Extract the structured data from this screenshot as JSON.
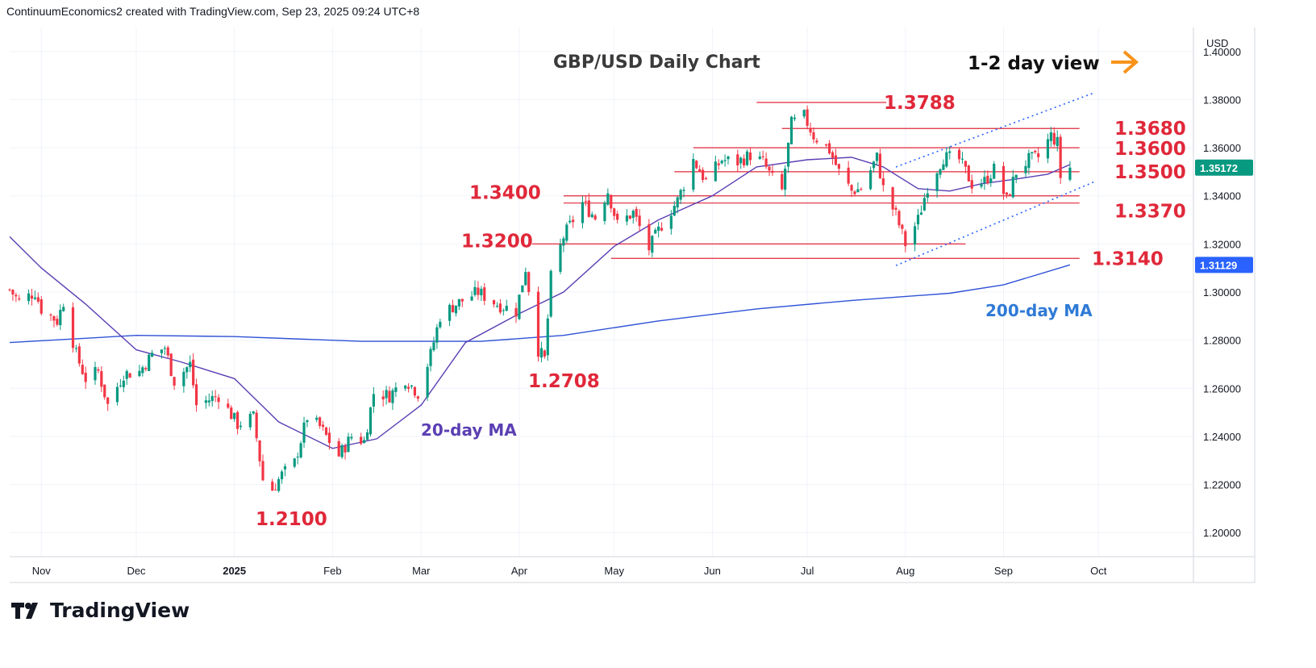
{
  "header": {
    "attribution": "ContinuumEconomics2 created with TradingView.com, Sep 23, 2025 09:24 UTC+8"
  },
  "brand": {
    "name": "TradingView"
  },
  "chart_data": {
    "type": "candlestick",
    "title": "GBP/USD Daily Chart",
    "view_note": "1-2 day view",
    "currency": "USD",
    "ylim": [
      1.19,
      1.41
    ],
    "y_ticks": [
      "1.40000",
      "1.38000",
      "1.36000",
      "1.34000",
      "1.32000",
      "1.30000",
      "1.28000",
      "1.26000",
      "1.24000",
      "1.22000",
      "1.20000"
    ],
    "x_ticks": [
      {
        "label": "Nov",
        "date": "2024-11-01"
      },
      {
        "label": "Dec",
        "date": "2024-12-01"
      },
      {
        "label": "2025",
        "date": "2025-01-01",
        "bold": true
      },
      {
        "label": "Feb",
        "date": "2025-02-01"
      },
      {
        "label": "Mar",
        "date": "2025-03-01"
      },
      {
        "label": "Apr",
        "date": "2025-04-01"
      },
      {
        "label": "May",
        "date": "2025-05-01"
      },
      {
        "label": "Jun",
        "date": "2025-06-01"
      },
      {
        "label": "Jul",
        "date": "2025-07-01"
      },
      {
        "label": "Aug",
        "date": "2025-08-01"
      },
      {
        "label": "Sep",
        "date": "2025-09-01"
      },
      {
        "label": "Oct",
        "date": "2025-10-01"
      }
    ],
    "last_price": "1.35172",
    "ma200_value": "1.31129",
    "levels": [
      {
        "label": "1.3788",
        "value": 1.3788,
        "from": "2025-06-15",
        "to": "2025-07-26"
      },
      {
        "label": "1.3680",
        "value": 1.368,
        "from": "2025-06-23",
        "to": "2025-09-25"
      },
      {
        "label": "1.3600",
        "value": 1.36,
        "from": "2025-05-26",
        "to": "2025-09-25"
      },
      {
        "label": "1.3500",
        "value": 1.35,
        "from": "2025-05-20",
        "to": "2025-09-25"
      },
      {
        "label": "1.3400",
        "value": 1.34,
        "from": "2025-04-15",
        "to": "2025-09-25"
      },
      {
        "label": "1.3370",
        "value": 1.337,
        "from": "2025-04-15",
        "to": "2025-09-25"
      },
      {
        "label": "1.3200",
        "value": 1.32,
        "from": "2025-04-05",
        "to": "2025-08-20"
      },
      {
        "label": "1.3140",
        "value": 1.314,
        "from": "2025-04-30",
        "to": "2025-09-25"
      }
    ],
    "annotations": [
      {
        "label": "1.2708",
        "date": "2025-04-09",
        "value": 1.2708
      },
      {
        "label": "1.2100",
        "date": "2025-01-13",
        "value": 1.21
      },
      {
        "label": "20-day MA"
      },
      {
        "label": "200-day MA"
      }
    ],
    "channel": {
      "upper": [
        {
          "date": "2025-07-29",
          "value": 1.352
        },
        {
          "date": "2025-09-30",
          "value": 1.383
        }
      ],
      "lower": [
        {
          "date": "2025-07-29",
          "value": 1.311
        },
        {
          "date": "2025-09-30",
          "value": 1.346
        }
      ]
    },
    "price_path": [
      [
        "2024-10-22",
        1.301
      ],
      [
        "2024-10-25",
        1.296
      ],
      [
        "2024-10-30",
        1.3
      ],
      [
        "2024-11-01",
        1.293
      ],
      [
        "2024-11-06",
        1.288
      ],
      [
        "2024-11-08",
        1.296
      ],
      [
        "2024-11-12",
        1.274
      ],
      [
        "2024-11-15",
        1.264
      ],
      [
        "2024-11-19",
        1.267
      ],
      [
        "2024-11-22",
        1.253
      ],
      [
        "2024-11-27",
        1.266
      ],
      [
        "2024-12-02",
        1.267
      ],
      [
        "2024-12-06",
        1.274
      ],
      [
        "2024-12-10",
        1.277
      ],
      [
        "2024-12-13",
        1.263
      ],
      [
        "2024-12-18",
        1.27
      ],
      [
        "2024-12-20",
        1.253
      ],
      [
        "2024-12-27",
        1.257
      ],
      [
        "2025-01-02",
        1.245
      ],
      [
        "2025-01-07",
        1.248
      ],
      [
        "2025-01-10",
        1.222
      ],
      [
        "2025-01-13",
        1.218
      ],
      [
        "2025-01-16",
        1.224
      ],
      [
        "2025-01-20",
        1.229
      ],
      [
        "2025-01-24",
        1.248
      ],
      [
        "2025-01-28",
        1.244
      ],
      [
        "2025-02-03",
        1.232
      ],
      [
        "2025-02-07",
        1.24
      ],
      [
        "2025-02-11",
        1.238
      ],
      [
        "2025-02-14",
        1.258
      ],
      [
        "2025-02-19",
        1.257
      ],
      [
        "2025-02-24",
        1.264
      ],
      [
        "2025-02-28",
        1.258
      ],
      [
        "2025-03-04",
        1.274
      ],
      [
        "2025-03-07",
        1.29
      ],
      [
        "2025-03-12",
        1.295
      ],
      [
        "2025-03-19",
        1.3
      ],
      [
        "2025-03-25",
        1.295
      ],
      [
        "2025-03-31",
        1.292
      ],
      [
        "2025-04-03",
        1.31
      ],
      [
        "2025-04-07",
        1.276
      ],
      [
        "2025-04-09",
        1.272
      ],
      [
        "2025-04-11",
        1.306
      ],
      [
        "2025-04-15",
        1.323
      ],
      [
        "2025-04-21",
        1.337
      ],
      [
        "2025-04-25",
        1.331
      ],
      [
        "2025-04-29",
        1.342
      ],
      [
        "2025-05-02",
        1.328
      ],
      [
        "2025-05-07",
        1.333
      ],
      [
        "2025-05-12",
        1.318
      ],
      [
        "2025-05-16",
        1.328
      ],
      [
        "2025-05-21",
        1.338
      ],
      [
        "2025-05-26",
        1.355
      ],
      [
        "2025-05-30",
        1.346
      ],
      [
        "2025-06-04",
        1.355
      ],
      [
        "2025-06-09",
        1.354
      ],
      [
        "2025-06-13",
        1.357
      ],
      [
        "2025-06-17",
        1.354
      ],
      [
        "2025-06-20",
        1.347
      ],
      [
        "2025-06-23",
        1.342
      ],
      [
        "2025-06-26",
        1.37
      ],
      [
        "2025-06-30",
        1.373
      ],
      [
        "2025-07-03",
        1.365
      ],
      [
        "2025-07-08",
        1.359
      ],
      [
        "2025-07-11",
        1.35
      ],
      [
        "2025-07-15",
        1.342
      ],
      [
        "2025-07-18",
        1.343
      ],
      [
        "2025-07-23",
        1.356
      ],
      [
        "2025-07-25",
        1.343
      ],
      [
        "2025-07-29",
        1.332
      ],
      [
        "2025-08-01",
        1.32
      ],
      [
        "2025-08-05",
        1.33
      ],
      [
        "2025-08-08",
        1.344
      ],
      [
        "2025-08-13",
        1.356
      ],
      [
        "2025-08-18",
        1.355
      ],
      [
        "2025-08-22",
        1.345
      ],
      [
        "2025-08-26",
        1.346
      ],
      [
        "2025-08-29",
        1.351
      ],
      [
        "2025-09-02",
        1.338
      ],
      [
        "2025-09-05",
        1.35
      ],
      [
        "2025-09-09",
        1.355
      ],
      [
        "2025-09-12",
        1.356
      ],
      [
        "2025-09-16",
        1.365
      ],
      [
        "2025-09-18",
        1.362
      ],
      [
        "2025-09-19",
        1.348
      ],
      [
        "2025-09-22",
        1.3517
      ]
    ],
    "ma200": [
      [
        "2024-10-22",
        1.279
      ],
      [
        "2024-12-01",
        1.282
      ],
      [
        "2025-01-01",
        1.2815
      ],
      [
        "2025-02-10",
        1.2795
      ],
      [
        "2025-03-20",
        1.2795
      ],
      [
        "2025-04-15",
        1.282
      ],
      [
        "2025-05-15",
        1.288
      ],
      [
        "2025-06-15",
        1.293
      ],
      [
        "2025-07-15",
        1.2965
      ],
      [
        "2025-08-15",
        1.2995
      ],
      [
        "2025-09-01",
        1.303
      ],
      [
        "2025-09-22",
        1.3113
      ]
    ],
    "ma20": [
      [
        "2024-10-22",
        1.323
      ],
      [
        "2024-11-01",
        1.31
      ],
      [
        "2024-11-15",
        1.295
      ],
      [
        "2024-12-01",
        1.276
      ],
      [
        "2024-12-15",
        1.271
      ],
      [
        "2025-01-01",
        1.264
      ],
      [
        "2025-01-15",
        1.246
      ],
      [
        "2025-02-01",
        1.235
      ],
      [
        "2025-02-15",
        1.239
      ],
      [
        "2025-03-01",
        1.253
      ],
      [
        "2025-03-15",
        1.279
      ],
      [
        "2025-04-01",
        1.291
      ],
      [
        "2025-04-15",
        1.3
      ],
      [
        "2025-05-01",
        1.319
      ],
      [
        "2025-05-15",
        1.33
      ],
      [
        "2025-06-01",
        1.34
      ],
      [
        "2025-06-15",
        1.352
      ],
      [
        "2025-07-01",
        1.355
      ],
      [
        "2025-07-15",
        1.356
      ],
      [
        "2025-07-25",
        1.352
      ],
      [
        "2025-08-05",
        1.343
      ],
      [
        "2025-08-15",
        1.342
      ],
      [
        "2025-08-25",
        1.345
      ],
      [
        "2025-09-05",
        1.347
      ],
      [
        "2025-09-15",
        1.349
      ],
      [
        "2025-09-22",
        1.353
      ]
    ]
  }
}
